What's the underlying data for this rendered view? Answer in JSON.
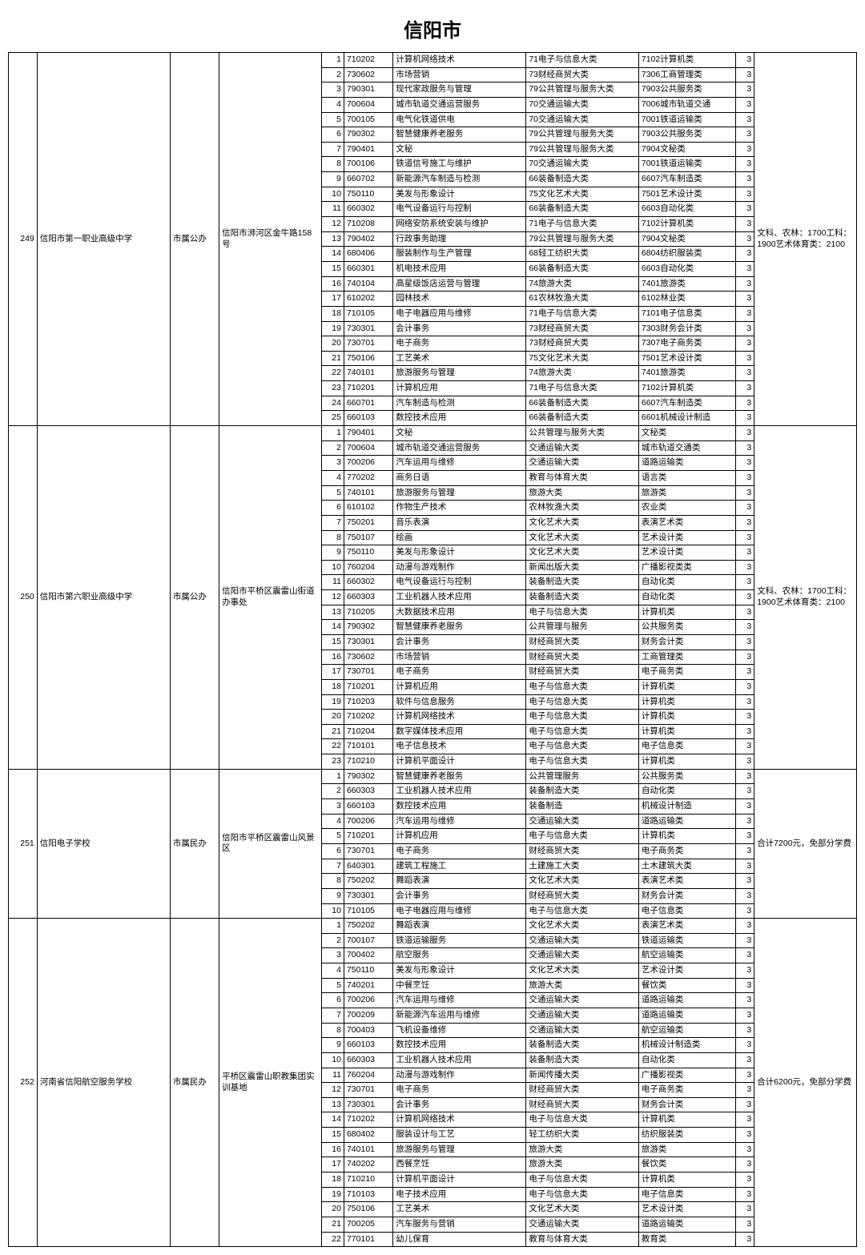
{
  "title": "信阳市",
  "schools": [
    {
      "idx": "249",
      "name": "信阳市第一职业高级中学",
      "type": "市属公办",
      "addr": "信阳市浉河区金牛路158号",
      "note": "文科、农林：1700工科：1900艺术体育类：2100",
      "rows": [
        {
          "seq": "1",
          "code": "710202",
          "prog": "计算机网络技术",
          "cat1": "71电子与信息大类",
          "cat2": "7102计算机类",
          "yrs": "3"
        },
        {
          "seq": "2",
          "code": "730602",
          "prog": "市场营销",
          "cat1": "73财经商贸大类",
          "cat2": "7306工商管理类",
          "yrs": "3"
        },
        {
          "seq": "3",
          "code": "790301",
          "prog": "现代家政服务与管理",
          "cat1": "79公共管理与服务大类",
          "cat2": "7903公共服务类",
          "yrs": "3"
        },
        {
          "seq": "4",
          "code": "700604",
          "prog": "城市轨道交通运营服务",
          "cat1": "70交通运输大类",
          "cat2": "7006城市轨道交通",
          "yrs": "3"
        },
        {
          "seq": "5",
          "code": "700105",
          "prog": "电气化铁道供电",
          "cat1": "70交通运输大类",
          "cat2": "7001铁道运输类",
          "yrs": "3"
        },
        {
          "seq": "6",
          "code": "790302",
          "prog": "智慧健康养老服务",
          "cat1": "79公共管理与服务大类",
          "cat2": "7903公共服务类",
          "yrs": "3"
        },
        {
          "seq": "7",
          "code": "790401",
          "prog": "文秘",
          "cat1": "79公共管理与服务大类",
          "cat2": "7904文秘类",
          "yrs": "3"
        },
        {
          "seq": "8",
          "code": "700106",
          "prog": "铁道信号施工与维护",
          "cat1": "70交通运输大类",
          "cat2": "7001铁道运输类",
          "yrs": "3"
        },
        {
          "seq": "9",
          "code": "660702",
          "prog": "新能源汽车制造与检测",
          "cat1": "66装备制造大类",
          "cat2": "6607汽车制造类",
          "yrs": "3"
        },
        {
          "seq": "10",
          "code": "750110",
          "prog": "美发与形象设计",
          "cat1": "75文化艺术大类",
          "cat2": "7501艺术设计类",
          "yrs": "3"
        },
        {
          "seq": "11",
          "code": "660302",
          "prog": "电气设备运行与控制",
          "cat1": "66装备制造大类",
          "cat2": "6603自动化类",
          "yrs": "3"
        },
        {
          "seq": "12",
          "code": "710208",
          "prog": "网络安防系统安装与维护",
          "cat1": "71电子与信息大类",
          "cat2": "7102计算机类",
          "yrs": "3"
        },
        {
          "seq": "13",
          "code": "790402",
          "prog": "行政事务助理",
          "cat1": "79公共管理与服务大类",
          "cat2": "7904文秘类",
          "yrs": "3"
        },
        {
          "seq": "14",
          "code": "680406",
          "prog": "服装制作与生产管理",
          "cat1": "68轻工纺织大类",
          "cat2": "6804纺织服装类",
          "yrs": "3"
        },
        {
          "seq": "15",
          "code": "660301",
          "prog": "机电技术应用",
          "cat1": "66装备制造大类",
          "cat2": "6603自动化类",
          "yrs": "3"
        },
        {
          "seq": "16",
          "code": "740104",
          "prog": "高星级饭店运营与管理",
          "cat1": "74旅游大类",
          "cat2": "7401旅游类",
          "yrs": "3"
        },
        {
          "seq": "17",
          "code": "610202",
          "prog": "园林技术",
          "cat1": "61农林牧渔大类",
          "cat2": "6102林业类",
          "yrs": "3"
        },
        {
          "seq": "18",
          "code": "710105",
          "prog": "电子电器应用与维修",
          "cat1": "71电子与信息大类",
          "cat2": "7101电子信息类",
          "yrs": "3"
        },
        {
          "seq": "19",
          "code": "730301",
          "prog": "会计事务",
          "cat1": "73财经商贸大类",
          "cat2": "7303财务会计类",
          "yrs": "3"
        },
        {
          "seq": "20",
          "code": "730701",
          "prog": "电子商务",
          "cat1": "73财经商贸大类",
          "cat2": "7307电子商务类",
          "yrs": "3"
        },
        {
          "seq": "21",
          "code": "750106",
          "prog": "工艺美术",
          "cat1": "75文化艺术大类",
          "cat2": "7501艺术设计类",
          "yrs": "3"
        },
        {
          "seq": "22",
          "code": "740101",
          "prog": "旅游服务与管理",
          "cat1": "74旅游大类",
          "cat2": "7401旅游类",
          "yrs": "3"
        },
        {
          "seq": "23",
          "code": "710201",
          "prog": "计算机应用",
          "cat1": "71电子与信息大类",
          "cat2": "7102计算机类",
          "yrs": "3"
        },
        {
          "seq": "24",
          "code": "660701",
          "prog": "汽车制造与检测",
          "cat1": "66装备制造大类",
          "cat2": "6607汽车制造类",
          "yrs": "3"
        },
        {
          "seq": "25",
          "code": "660103",
          "prog": "数控技术应用",
          "cat1": "66装备制造大类",
          "cat2": "6601机械设计制造",
          "yrs": "3"
        }
      ]
    },
    {
      "idx": "250",
      "name": "信阳市第六职业高级中学",
      "type": "市属公办",
      "addr": "信阳市平桥区震雷山街道办事处",
      "note": "文科、农林：1700工科：1900艺术体育类：2100",
      "rows": [
        {
          "seq": "1",
          "code": "790401",
          "prog": "文秘",
          "cat1": "公共管理与服务大类",
          "cat2": "文秘类",
          "yrs": "3"
        },
        {
          "seq": "2",
          "code": "700604",
          "prog": "城市轨道交通运营服务",
          "cat1": "交通运输大类",
          "cat2": "城市轨道交通类",
          "yrs": "3"
        },
        {
          "seq": "3",
          "code": "700206",
          "prog": "汽车运用与维修",
          "cat1": "交通运输大类",
          "cat2": "道路运输类",
          "yrs": "3"
        },
        {
          "seq": "4",
          "code": "770202",
          "prog": "商务日语",
          "cat1": "教育与体育大类",
          "cat2": "语言类",
          "yrs": "3"
        },
        {
          "seq": "5",
          "code": "740101",
          "prog": "旅游服务与管理",
          "cat1": "旅游大类",
          "cat2": "旅游类",
          "yrs": "3"
        },
        {
          "seq": "6",
          "code": "610102",
          "prog": "作物生产技术",
          "cat1": "农林牧渔大类",
          "cat2": "农业类",
          "yrs": "3"
        },
        {
          "seq": "7",
          "code": "750201",
          "prog": "音乐表演",
          "cat1": "文化艺术大类",
          "cat2": "表演艺术类",
          "yrs": "3"
        },
        {
          "seq": "8",
          "code": "750107",
          "prog": "绘画",
          "cat1": "文化艺术大类",
          "cat2": "艺术设计类",
          "yrs": "3"
        },
        {
          "seq": "9",
          "code": "750110",
          "prog": "美发与形象设计",
          "cat1": "文化艺术大类",
          "cat2": "艺术设计类",
          "yrs": "3"
        },
        {
          "seq": "10",
          "code": "760204",
          "prog": "动漫与游戏制作",
          "cat1": "新闻出版大类",
          "cat2": "广播影视类类",
          "yrs": "3"
        },
        {
          "seq": "11",
          "code": "660302",
          "prog": "电气设备运行与控制",
          "cat1": "装备制造大类",
          "cat2": "自动化类",
          "yrs": "3"
        },
        {
          "seq": "12",
          "code": "660303",
          "prog": "工业机器人技术应用",
          "cat1": "装备制造大类",
          "cat2": "自动化类",
          "yrs": "3"
        },
        {
          "seq": "13",
          "code": "710205",
          "prog": "大数据技术应用",
          "cat1": "电子与信息大类",
          "cat2": "计算机类",
          "yrs": "3"
        },
        {
          "seq": "14",
          "code": "790302",
          "prog": "智慧健康养老服务",
          "cat1": "公共管理与服务",
          "cat2": "公共服务类",
          "yrs": "3"
        },
        {
          "seq": "15",
          "code": "730301",
          "prog": "会计事务",
          "cat1": "财经商贸大类",
          "cat2": "财务会计类",
          "yrs": "3"
        },
        {
          "seq": "16",
          "code": "730602",
          "prog": "市场营销",
          "cat1": "财经商贸大类",
          "cat2": "工商管理类",
          "yrs": "3"
        },
        {
          "seq": "17",
          "code": "730701",
          "prog": "电子商务",
          "cat1": "财经商贸大类",
          "cat2": "电子商务类",
          "yrs": "3"
        },
        {
          "seq": "18",
          "code": "710201",
          "prog": "计算机应用",
          "cat1": "电子与信息大类",
          "cat2": "计算机类",
          "yrs": "3"
        },
        {
          "seq": "19",
          "code": "710203",
          "prog": "软件与信息服务",
          "cat1": "电子与信息大类",
          "cat2": "计算机类",
          "yrs": "3"
        },
        {
          "seq": "20",
          "code": "710202",
          "prog": "计算机网络技术",
          "cat1": "电子与信息大类",
          "cat2": "计算机类",
          "yrs": "3"
        },
        {
          "seq": "21",
          "code": "710204",
          "prog": "数字媒体技术应用",
          "cat1": "电子与信息大类",
          "cat2": "计算机类",
          "yrs": "3"
        },
        {
          "seq": "22",
          "code": "710101",
          "prog": "电子信息技术",
          "cat1": "电子与信息大类",
          "cat2": "电子信息类",
          "yrs": "3"
        },
        {
          "seq": "23",
          "code": "710210",
          "prog": "计算机平面设计",
          "cat1": "电子与信息大类",
          "cat2": "计算机类",
          "yrs": "3"
        }
      ]
    },
    {
      "idx": "251",
      "name": "信阳电子学校",
      "type": "市属民办",
      "addr": "信阳市平桥区震雷山风景区",
      "note": "合计7200元，免部分学费",
      "rows": [
        {
          "seq": "1",
          "code": "790302",
          "prog": "智慧健康养老服务",
          "cat1": "公共管理服务",
          "cat2": "公共服务类",
          "yrs": "3"
        },
        {
          "seq": "2",
          "code": "660303",
          "prog": "工业机器人技术应用",
          "cat1": "装备制造大类",
          "cat2": "自动化类",
          "yrs": "3"
        },
        {
          "seq": "3",
          "code": "660103",
          "prog": "数控技术应用",
          "cat1": "装备制造",
          "cat2": "机械设计制造",
          "yrs": "3"
        },
        {
          "seq": "4",
          "code": "700206",
          "prog": "汽车运用与维修",
          "cat1": "交通运输大类",
          "cat2": "道路运输类",
          "yrs": "3"
        },
        {
          "seq": "5",
          "code": "710201",
          "prog": "计算机应用",
          "cat1": "电子与信息大类",
          "cat2": "计算机类",
          "yrs": "3"
        },
        {
          "seq": "6",
          "code": "730701",
          "prog": "电子商务",
          "cat1": "财经商贸大类",
          "cat2": "电子商务类",
          "yrs": "3"
        },
        {
          "seq": "7",
          "code": "640301",
          "prog": "建筑工程施工",
          "cat1": "土建施工大类",
          "cat2": "土木建筑大类",
          "yrs": "3"
        },
        {
          "seq": "8",
          "code": "750202",
          "prog": "舞蹈表演",
          "cat1": "文化艺术大类",
          "cat2": "表演艺术类",
          "yrs": "3"
        },
        {
          "seq": "9",
          "code": "730301",
          "prog": "会计事务",
          "cat1": "财经商贸大类",
          "cat2": "财务会计类",
          "yrs": "3"
        },
        {
          "seq": "10",
          "code": "710105",
          "prog": "电子电器应用与维修",
          "cat1": "电子与信息大类",
          "cat2": "电子信息类",
          "yrs": "3"
        }
      ]
    },
    {
      "idx": "252",
      "name": "河南省信阳航空服务学校",
      "type": "市属民办",
      "addr": "平桥区震雷山职教集团实训基地",
      "note": "合计6200元，免部分学费",
      "rows": [
        {
          "seq": "1",
          "code": "750202",
          "prog": "舞蹈表演",
          "cat1": "文化艺术大类",
          "cat2": "表演艺术类",
          "yrs": "3"
        },
        {
          "seq": "2",
          "code": "700107",
          "prog": "铁道运输服务",
          "cat1": "交通运输大类",
          "cat2": "铁道运输类",
          "yrs": "3"
        },
        {
          "seq": "3",
          "code": "700402",
          "prog": "航空服务",
          "cat1": "交通运输大类",
          "cat2": "航空运输类",
          "yrs": "3"
        },
        {
          "seq": "4",
          "code": "750110",
          "prog": "美发与形象设计",
          "cat1": "文化艺术大类",
          "cat2": "艺术设计类",
          "yrs": "3"
        },
        {
          "seq": "5",
          "code": "740201",
          "prog": "中餐烹饪",
          "cat1": "旅游大类",
          "cat2": "餐饮类",
          "yrs": "3"
        },
        {
          "seq": "6",
          "code": "700206",
          "prog": "汽车运用与维修",
          "cat1": "交通运输大类",
          "cat2": "道路运输类",
          "yrs": "3"
        },
        {
          "seq": "7",
          "code": "700209",
          "prog": "新能源汽车运用与维修",
          "cat1": "交通运输大类",
          "cat2": "道路运输类",
          "yrs": "3"
        },
        {
          "seq": "8",
          "code": "700403",
          "prog": "飞机设备维修",
          "cat1": "交通运输大类",
          "cat2": "航空运输类",
          "yrs": "3"
        },
        {
          "seq": "9",
          "code": "660103",
          "prog": "数控技术应用",
          "cat1": "装备制造大类",
          "cat2": "机械设计制造类",
          "yrs": "3"
        },
        {
          "seq": "10",
          "code": "660303",
          "prog": "工业机器人技术应用",
          "cat1": "装备制造大类",
          "cat2": "自动化类",
          "yrs": "3"
        },
        {
          "seq": "11",
          "code": "760204",
          "prog": "动漫与游戏制作",
          "cat1": "新闻传播大类",
          "cat2": "广播影视类",
          "yrs": "3"
        },
        {
          "seq": "12",
          "code": "730701",
          "prog": "电子商务",
          "cat1": "财经商贸大类",
          "cat2": "电子商务类",
          "yrs": "3"
        },
        {
          "seq": "13",
          "code": "730301",
          "prog": "会计事务",
          "cat1": "财经商贸大类",
          "cat2": "财务会计类",
          "yrs": "3"
        },
        {
          "seq": "14",
          "code": "710202",
          "prog": "计算机网络技术",
          "cat1": "电子与信息大类",
          "cat2": "计算机类",
          "yrs": "3"
        },
        {
          "seq": "15",
          "code": "680402",
          "prog": "服装设计与工艺",
          "cat1": "轻工纺织大类",
          "cat2": "纺织服装类",
          "yrs": "3"
        },
        {
          "seq": "16",
          "code": "740101",
          "prog": "旅游服务与管理",
          "cat1": "旅游大类",
          "cat2": "旅游类",
          "yrs": "3"
        },
        {
          "seq": "17",
          "code": "740202",
          "prog": "西餐烹饪",
          "cat1": "旅游大类",
          "cat2": "餐饮类",
          "yrs": "3"
        },
        {
          "seq": "18",
          "code": "710210",
          "prog": "计算机平面设计",
          "cat1": "电子与信息大类",
          "cat2": "计算机类",
          "yrs": "3"
        },
        {
          "seq": "19",
          "code": "710103",
          "prog": "电子技术应用",
          "cat1": "电子与信息大类",
          "cat2": "电子信息类",
          "yrs": "3"
        },
        {
          "seq": "20",
          "code": "750106",
          "prog": "工艺美术",
          "cat1": "文化艺术大类",
          "cat2": "艺术设计类",
          "yrs": "3"
        },
        {
          "seq": "21",
          "code": "700205",
          "prog": "汽车服务与营销",
          "cat1": "交通运输大类",
          "cat2": "道路运输类",
          "yrs": "3"
        },
        {
          "seq": "22",
          "code": "770101",
          "prog": "幼儿保育",
          "cat1": "教育与体育大类",
          "cat2": "教育类",
          "yrs": "3"
        }
      ]
    }
  ]
}
